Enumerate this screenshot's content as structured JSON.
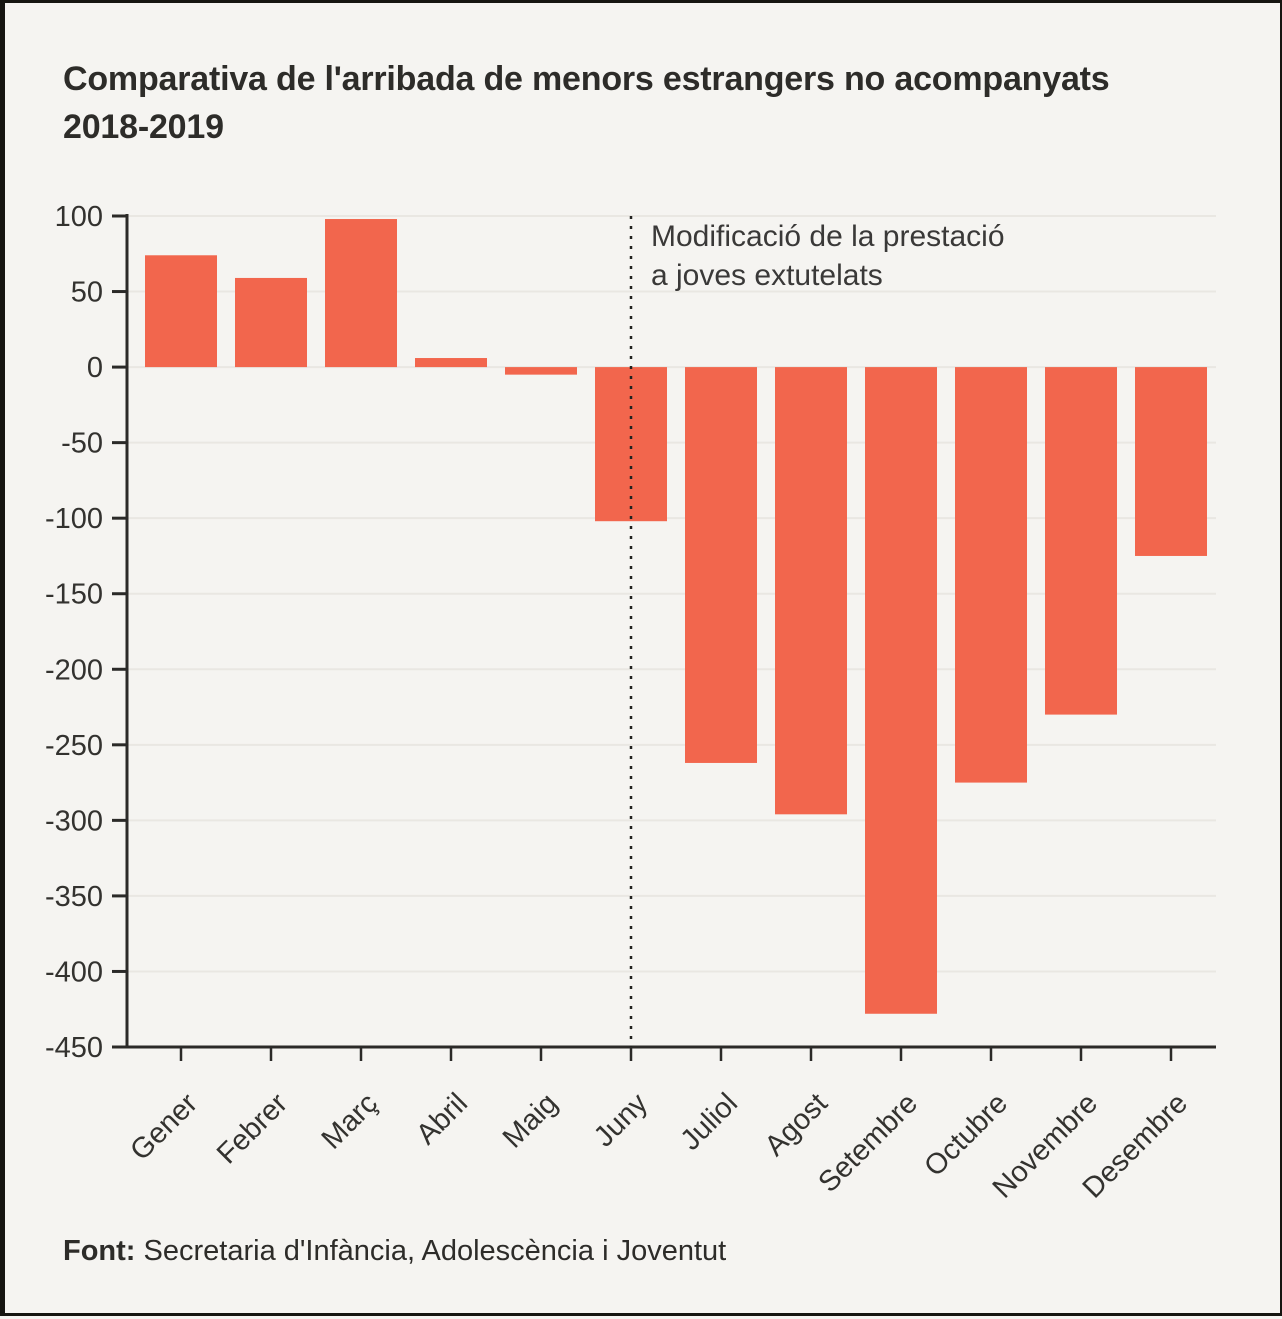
{
  "page": {
    "title": "Comparativa de l'arribada de menors estrangers no acompanyats 2018-2019",
    "source_label": "Font:",
    "source_text": "Secretaria d'Infància, Adolescència i Joventut"
  },
  "chart_data": {
    "type": "bar",
    "title": "Comparativa de l'arribada de menors estrangers no acompanyats 2018-2019",
    "xlabel": "",
    "ylabel": "",
    "categories": [
      "Gener",
      "Febrer",
      "Març",
      "Abril",
      "Maig",
      "Juny",
      "Juliol",
      "Agost",
      "Setembre",
      "Octubre",
      "Novembre",
      "Desembre"
    ],
    "values": [
      74,
      59,
      98,
      6,
      -5,
      -102,
      -262,
      -296,
      -428,
      -275,
      -230,
      -125
    ],
    "ylim": [
      -450,
      100
    ],
    "yticks": [
      100,
      50,
      0,
      -50,
      -100,
      -150,
      -200,
      -250,
      -300,
      -350,
      -400,
      -450
    ],
    "grid": true,
    "legend": false,
    "annotation": {
      "lines": [
        "Modificació de la prestació",
        "a joves extutelats"
      ],
      "vline_at": "Juny"
    },
    "source": "Font: Secretaria d'Infància, Adolescència i Joventut",
    "colors": {
      "bar": "#f2664d",
      "background": "#f5f4f1",
      "axis": "#2b2a28",
      "grid": "#e9e7e2",
      "annotation_line": "#222220",
      "text": "#33322f"
    }
  }
}
